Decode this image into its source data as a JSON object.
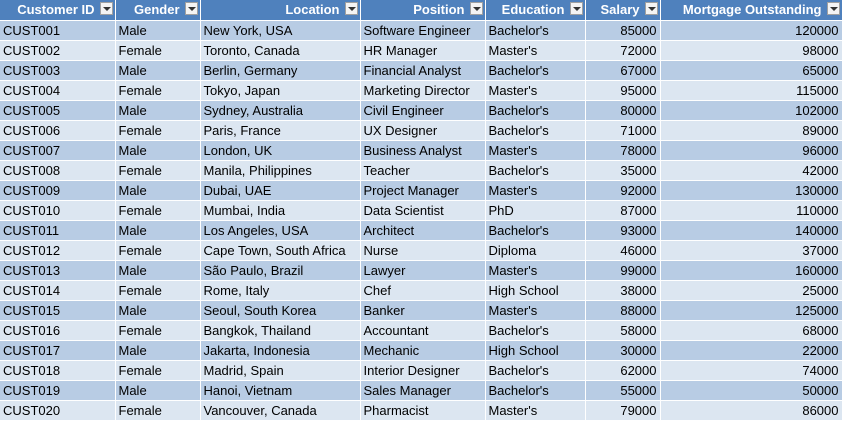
{
  "headers": [
    {
      "label": "Customer ID",
      "key": "customer-id"
    },
    {
      "label": "Gender",
      "key": "gender"
    },
    {
      "label": "Location",
      "key": "location"
    },
    {
      "label": "Position",
      "key": "position"
    },
    {
      "label": "Education",
      "key": "education"
    },
    {
      "label": "Salary",
      "key": "salary"
    },
    {
      "label": "Mortgage Outstanding",
      "key": "mortgage-outstanding"
    }
  ],
  "rows": [
    [
      "CUST001",
      "Male",
      "New York, USA",
      "Software Engineer",
      "Bachelor's",
      "85000",
      "120000"
    ],
    [
      "CUST002",
      "Female",
      "Toronto, Canada",
      "HR Manager",
      "Master's",
      "72000",
      "98000"
    ],
    [
      "CUST003",
      "Male",
      "Berlin, Germany",
      "Financial Analyst",
      "Bachelor's",
      "67000",
      "65000"
    ],
    [
      "CUST004",
      "Female",
      "Tokyo, Japan",
      "Marketing Director",
      "Master's",
      "95000",
      "115000"
    ],
    [
      "CUST005",
      "Male",
      "Sydney, Australia",
      "Civil Engineer",
      "Bachelor's",
      "80000",
      "102000"
    ],
    [
      "CUST006",
      "Female",
      "Paris, France",
      "UX Designer",
      "Bachelor's",
      "71000",
      "89000"
    ],
    [
      "CUST007",
      "Male",
      "London, UK",
      "Business Analyst",
      "Master's",
      "78000",
      "96000"
    ],
    [
      "CUST008",
      "Female",
      "Manila, Philippines",
      "Teacher",
      "Bachelor's",
      "35000",
      "42000"
    ],
    [
      "CUST009",
      "Male",
      "Dubai, UAE",
      "Project Manager",
      "Master's",
      "92000",
      "130000"
    ],
    [
      "CUST010",
      "Female",
      "Mumbai, India",
      "Data Scientist",
      "PhD",
      "87000",
      "110000"
    ],
    [
      "CUST011",
      "Male",
      "Los Angeles, USA",
      "Architect",
      "Bachelor's",
      "93000",
      "140000"
    ],
    [
      "CUST012",
      "Female",
      "Cape Town, South Africa",
      "Nurse",
      "Diploma",
      "46000",
      "37000"
    ],
    [
      "CUST013",
      "Male",
      "São Paulo, Brazil",
      "Lawyer",
      "Master's",
      "99000",
      "160000"
    ],
    [
      "CUST014",
      "Female",
      "Rome, Italy",
      "Chef",
      "High School",
      "38000",
      "25000"
    ],
    [
      "CUST015",
      "Male",
      "Seoul, South Korea",
      "Banker",
      "Master's",
      "88000",
      "125000"
    ],
    [
      "CUST016",
      "Female",
      "Bangkok, Thailand",
      "Accountant",
      "Bachelor's",
      "58000",
      "68000"
    ],
    [
      "CUST017",
      "Male",
      "Jakarta, Indonesia",
      "Mechanic",
      "High School",
      "30000",
      "22000"
    ],
    [
      "CUST018",
      "Female",
      "Madrid, Spain",
      "Interior Designer",
      "Bachelor's",
      "62000",
      "74000"
    ],
    [
      "CUST019",
      "Male",
      "Hanoi, Vietnam",
      "Sales Manager",
      "Bachelor's",
      "55000",
      "50000"
    ],
    [
      "CUST020",
      "Female",
      "Vancouver, Canada",
      "Pharmacist",
      "Master's",
      "79000",
      "86000"
    ]
  ],
  "colors": {
    "header_bg": "#4f81bd",
    "band_dark": "#b8cce4",
    "band_light": "#dce6f1"
  }
}
